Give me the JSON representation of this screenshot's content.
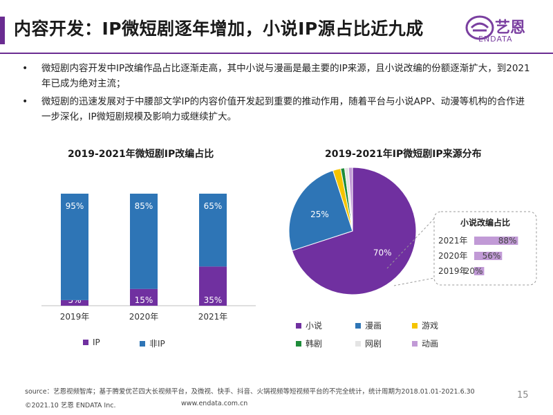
{
  "header": {
    "title": "内容开发：IP微短剧逐年增加，小说IP源占比近九成",
    "logo_cn": "艺恩",
    "logo_en": "ENDATA"
  },
  "bullets": [
    "微短剧内容开发中IP改编作品占比逐渐走高，其中小说与漫画是最主要的IP来源，且小说改编的份额逐渐扩大，到2021年已成为绝对主流；",
    "微短剧的迅速发展对于中腰部文学IP的内容价值开发起到重要的推动作用，随着平台与小说APP、动漫等机构的合作进一步深化，IP微短剧规模及影响力或继续扩大。"
  ],
  "colors": {
    "purple": "#7030a0",
    "blue": "#2e75b6",
    "yellow": "#f5c400",
    "green": "#1e8c3a",
    "lightgray": "#e4e4e4",
    "pink": "#c19ad6",
    "accent": "#6a2c91"
  },
  "chart_data": [
    {
      "type": "bar",
      "stacked": true,
      "title": "2019-2021年微短剧IP改编占比",
      "categories": [
        "2019年",
        "2020年",
        "2021年"
      ],
      "series": [
        {
          "name": "IP",
          "values": [
            5,
            15,
            35
          ],
          "labels": [
            "5%",
            "15%",
            "35%"
          ]
        },
        {
          "name": "非IP",
          "values": [
            95,
            85,
            65
          ],
          "labels": [
            "95%",
            "85%",
            "65%"
          ]
        }
      ],
      "ylim": [
        0,
        100
      ],
      "legend": "bottom"
    },
    {
      "type": "pie",
      "title": "2019-2021年IP微短剧IP来源分布",
      "categories": [
        "小说",
        "漫画",
        "游戏",
        "韩剧",
        "网剧",
        "动画"
      ],
      "values": [
        70,
        25,
        2,
        1,
        1,
        1
      ],
      "labels": [
        "70%",
        "25%",
        "",
        "",
        "",
        ""
      ],
      "legend": "bottom"
    },
    {
      "type": "bar",
      "orientation": "horizontal",
      "title": "小说改编占比",
      "categories": [
        "2021年",
        "2020年",
        "2019年"
      ],
      "values": [
        88,
        56,
        20
      ],
      "labels": [
        "88%",
        "56%",
        "20%"
      ],
      "xlim": [
        0,
        100
      ]
    }
  ],
  "footer": {
    "source": "source：艺恩视频智库；基于腾爱优芒四大长视频平台，及微视、快手、抖音、火锅视频等短视频平台的不完全统计，统计周期为2018.01.01-2021.6.30",
    "copyright": "©2021.10 艺恩 ENDATA Inc.",
    "website": "www.endata.com.cn",
    "page": "15"
  }
}
